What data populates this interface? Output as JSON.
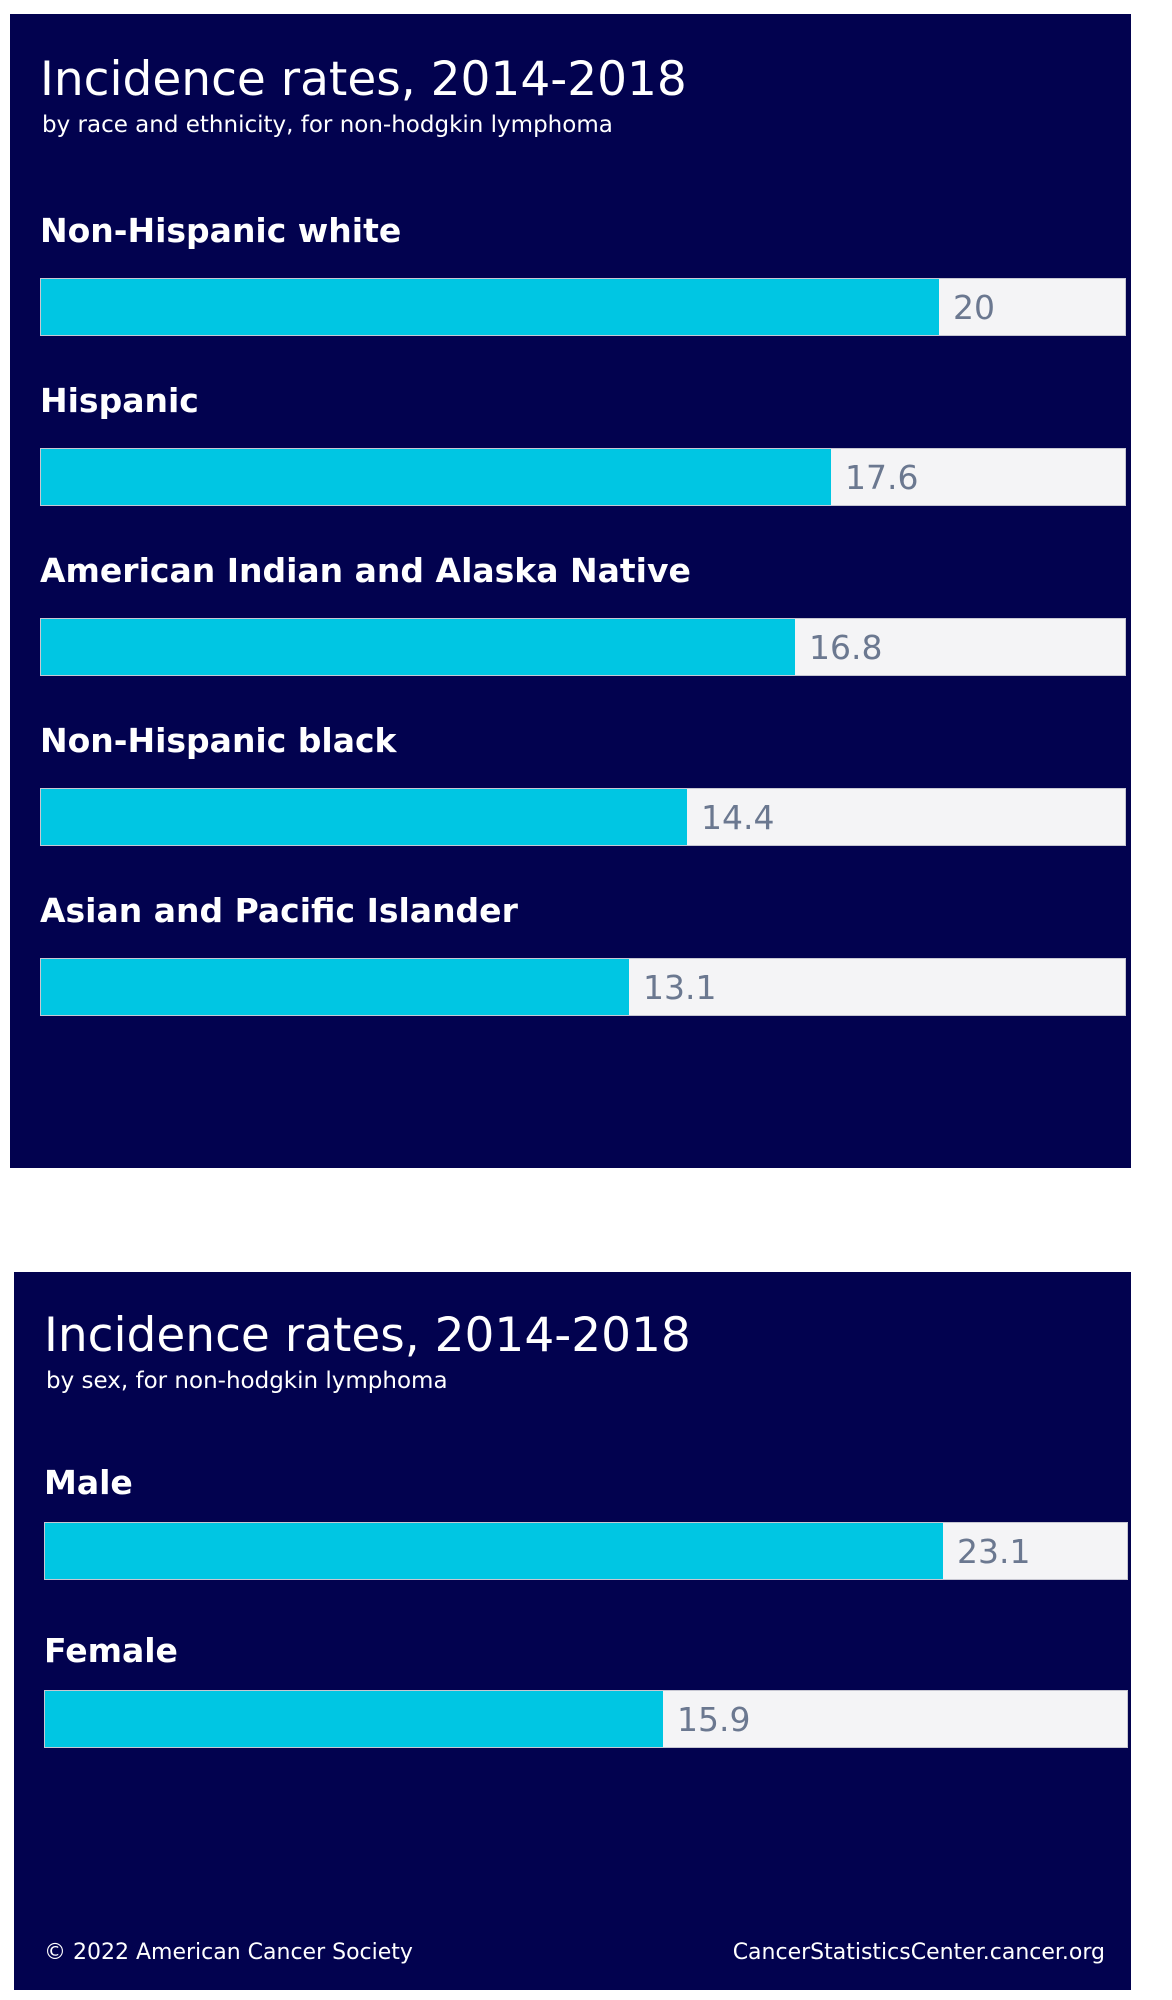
{
  "chart_data": [
    {
      "type": "bar",
      "orientation": "horizontal",
      "title": "Incidence rates, 2014-2018",
      "subtitle": "by race and ethnicity, for non-hodgkin lymphoma",
      "categories": [
        "Non-Hispanic white",
        "Hispanic",
        "American Indian and Alaska Native",
        "Non-Hispanic black",
        "Asian and Pacific Islander"
      ],
      "values": [
        20,
        17.6,
        16.8,
        14.4,
        13.1
      ],
      "value_labels": [
        "20",
        "17.6",
        "16.8",
        "14.4",
        "13.1"
      ],
      "xlim": [
        0,
        24.2
      ],
      "grid": false,
      "colors": {
        "bar": "#00c6e3",
        "track": "#f4f4f6",
        "background": "#02024f",
        "value_text": "#6b7890"
      }
    },
    {
      "type": "bar",
      "orientation": "horizontal",
      "title": "Incidence rates, 2014-2018",
      "subtitle": "by sex, for non-hodgkin lymphoma",
      "categories": [
        "Male",
        "Female"
      ],
      "values": [
        23.1,
        15.9
      ],
      "value_labels": [
        "23.1",
        "15.9"
      ],
      "xlim": [
        0,
        27.9
      ],
      "grid": false,
      "colors": {
        "bar": "#00c6e3",
        "track": "#f4f4f6",
        "background": "#02024f",
        "value_text": "#6b7890"
      }
    }
  ],
  "footer": {
    "copyright": "© 2022 American Cancer Society",
    "source": "CancerStatisticsCenter.cancer.org"
  }
}
